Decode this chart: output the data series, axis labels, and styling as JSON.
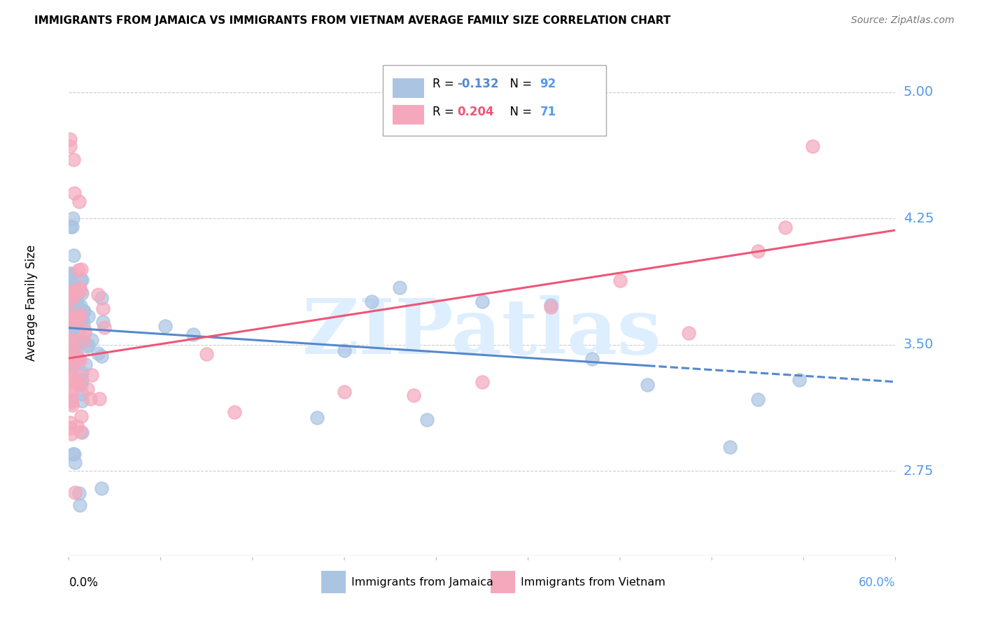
{
  "title": "IMMIGRANTS FROM JAMAICA VS IMMIGRANTS FROM VIETNAM AVERAGE FAMILY SIZE CORRELATION CHART",
  "source": "Source: ZipAtlas.com",
  "ylabel": "Average Family Size",
  "yticks": [
    2.75,
    3.5,
    4.25,
    5.0
  ],
  "xlim": [
    0.0,
    0.6
  ],
  "ylim": [
    2.25,
    5.25
  ],
  "legend1_R": "-0.132",
  "legend1_N": "92",
  "legend2_R": "0.204",
  "legend2_N": "71",
  "color_jamaica": "#aac4e2",
  "color_vietnam": "#f5a8bc",
  "color_jamaica_line": "#5588cc",
  "color_vietnam_line": "#ee5577",
  "color_right_axis": "#5599ee",
  "watermark_color": "#ddeeff",
  "jamaica_line_solid_end": 0.42,
  "jamaica_line_x0": 0.0,
  "jamaica_line_y0": 3.6,
  "jamaica_line_x1": 0.6,
  "jamaica_line_y1": 3.28,
  "vietnam_line_x0": 0.0,
  "vietnam_line_y0": 3.42,
  "vietnam_line_x1": 0.6,
  "vietnam_line_y1": 4.18,
  "seed": 12345,
  "n_jamaica": 92,
  "n_vietnam": 71
}
